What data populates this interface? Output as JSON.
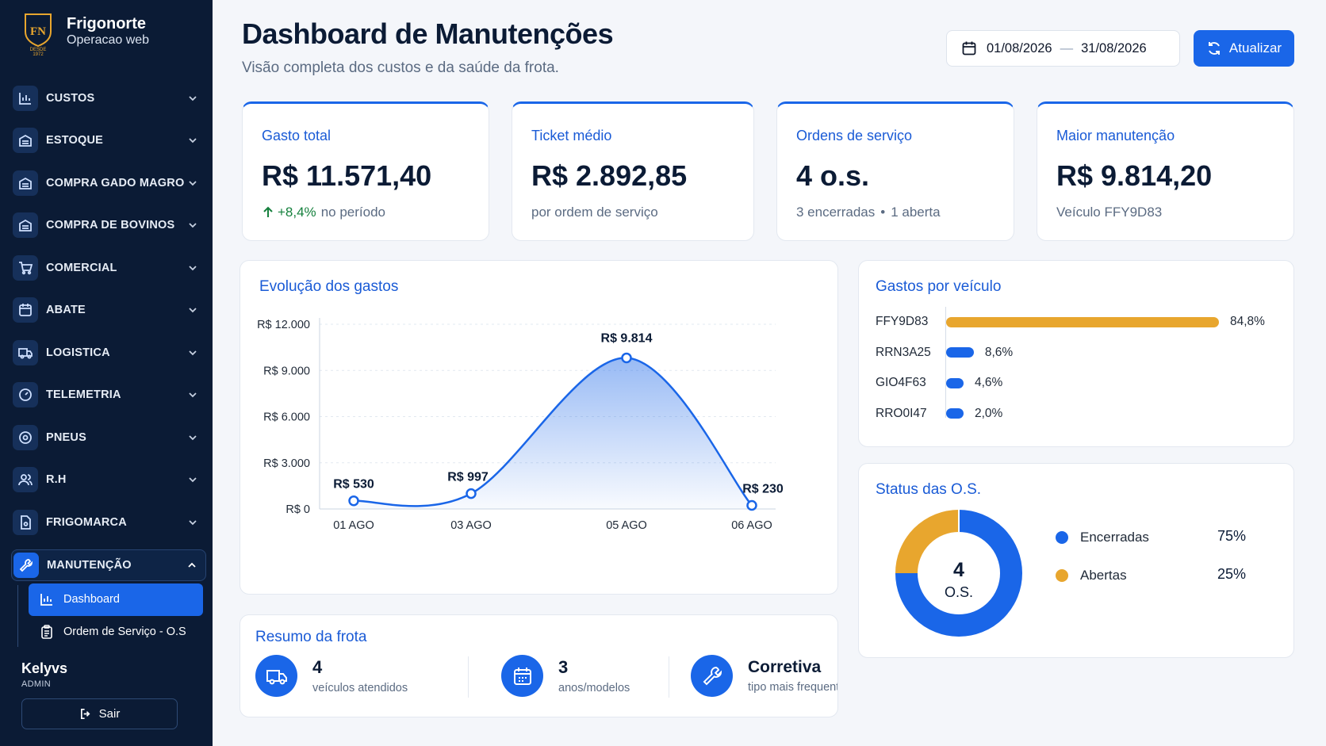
{
  "brand": {
    "name": "Frigonorte",
    "subtitle": "Operacao web",
    "logo_letters": "FN",
    "logo_since": "DESDE",
    "logo_year": "1972"
  },
  "sidebar": {
    "items": [
      {
        "label": "CUSTOS",
        "icon": "bar-chart-icon"
      },
      {
        "label": "ESTOQUE",
        "icon": "warehouse-icon"
      },
      {
        "label": "COMPRA GADO MAGRO",
        "icon": "warehouse-icon"
      },
      {
        "label": "COMPRA DE BOVINOS",
        "icon": "warehouse-icon"
      },
      {
        "label": "COMERCIAL",
        "icon": "cart-icon"
      },
      {
        "label": "ABATE",
        "icon": "calendar-icon"
      },
      {
        "label": "LOGISTICA",
        "icon": "truck-icon"
      },
      {
        "label": "TELEMETRIA",
        "icon": "gauge-icon"
      },
      {
        "label": "PNEUS",
        "icon": "tire-icon"
      },
      {
        "label": "R.H",
        "icon": "users-icon"
      },
      {
        "label": "FRIGOMARCA",
        "icon": "file-icon"
      }
    ],
    "active": {
      "label": "MANUTENÇÃO",
      "icon": "wrench-icon"
    },
    "subitems": [
      {
        "label": "Dashboard",
        "icon": "bar-chart-icon",
        "selected": true
      },
      {
        "label": "Ordem de Serviço - O.S",
        "icon": "clipboard-icon",
        "selected": false
      }
    ],
    "user": {
      "name": "Kelyvs",
      "role": "ADMIN"
    },
    "logout_label": "Sair"
  },
  "header": {
    "title": "Dashboard de Manutenções",
    "subtitle": "Visão completa dos custos e da saúde da frota.",
    "date_start": "01/08/2026",
    "date_sep": "—",
    "date_end": "31/08/2026",
    "refresh_label": "Atualizar"
  },
  "kpis": [
    {
      "label": "Gasto total",
      "value": "R$ 11.571,40",
      "note_pos": "+8,4%",
      "note": "no período"
    },
    {
      "label": "Ticket médio",
      "value": "R$ 2.892,85",
      "note": "por ordem de serviço"
    },
    {
      "label": "Ordens de serviço",
      "value": "4 o.s.",
      "note_a": "3 encerradas",
      "note_sep": "•",
      "note_b": "1 aberta"
    },
    {
      "label": "Maior manutenção",
      "value": "R$ 9.814,20",
      "note": "Veículo FFY9D83"
    }
  ],
  "evolution": {
    "title": "Evolução dos gastos",
    "chart_data": {
      "type": "area",
      "x": [
        "01 AGO",
        "03 AGO",
        "05 AGO",
        "06 AGO"
      ],
      "values": [
        530,
        997,
        9814,
        230
      ],
      "value_labels": [
        "R$ 530",
        "R$ 997",
        "R$ 9.814",
        "R$ 230"
      ],
      "yticks": [
        0,
        3000,
        6000,
        9000,
        12000
      ],
      "ytick_labels": [
        "R$ 0",
        "R$ 3.000",
        "R$ 6.000",
        "R$ 9.000",
        "R$ 12.000"
      ],
      "ylim": [
        0,
        12000
      ],
      "grid": true,
      "color": "#1a66e8"
    }
  },
  "vehicles": {
    "title": "Gastos por veículo",
    "chart_data": {
      "type": "bar",
      "orientation": "horizontal",
      "categories": [
        "FFY9D83",
        "RRN3A25",
        "GIO4F63",
        "RRO0I47"
      ],
      "values": [
        84.8,
        8.6,
        4.6,
        2.0
      ],
      "value_labels": [
        "84,8%",
        "8,6%",
        "4,6%",
        "2,0%"
      ],
      "colors": [
        "#e8a62e",
        "#1a66e8",
        "#1a66e8",
        "#1a66e8"
      ]
    }
  },
  "status": {
    "title": "Status das O.S.",
    "center_value": "4",
    "center_label": "O.S.",
    "chart_data": {
      "type": "pie",
      "categories": [
        "Encerradas",
        "Abertas"
      ],
      "values": [
        75,
        25
      ],
      "value_labels": [
        "75%",
        "25%"
      ],
      "colors": [
        "#1a66e8",
        "#e8a62e"
      ]
    }
  },
  "fleet": {
    "title": "Resumo da frota",
    "items": [
      {
        "value": "4",
        "label": "veículos atendidos",
        "icon": "truck-icon"
      },
      {
        "value": "3",
        "label": "anos/modelos",
        "icon": "calendar-icon"
      },
      {
        "value": "Corretiva",
        "label": "tipo mais frequente",
        "icon": "wrench-icon"
      }
    ]
  },
  "colors": {
    "sidebar": "#0b1b35",
    "accent": "#1a66e8",
    "accent_text": "#1a5bd6",
    "highlight": "#e8a62e",
    "positive": "#15803d"
  }
}
